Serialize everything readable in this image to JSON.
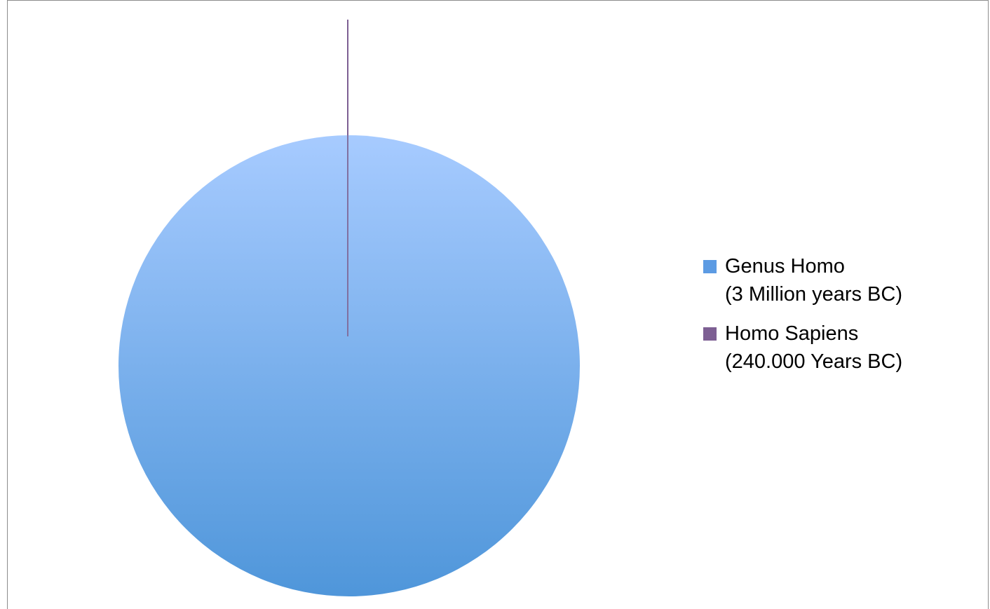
{
  "chart_data": {
    "type": "pie",
    "title": "",
    "series": [
      {
        "values": [
          3000000,
          240000
        ]
      }
    ],
    "categories": [
      "Genus Homo (3 Million years BC)",
      "Homo Sapiens (240.000 Years BC)"
    ],
    "slices": [
      {
        "label_line1": "Genus Homo",
        "label_line2": "(3 Million years BC)",
        "value": 3000000,
        "color_top": "#A7CBFF",
        "color_bottom": "#4F96DA"
      },
      {
        "label_line1": "Homo Sapiens",
        "label_line2": "(240.000 Years BC)",
        "value": 240000,
        "color": "#7D5F93"
      }
    ],
    "legend": {
      "position": "right",
      "items": [
        {
          "line1": "Genus Homo",
          "line2": "(3 Million years BC)",
          "swatch_color": "#5C9BE3"
        },
        {
          "line1": "Homo Sapiens",
          "line2": "(240.000 Years BC)",
          "swatch_color": "#7D5F93"
        }
      ]
    }
  }
}
